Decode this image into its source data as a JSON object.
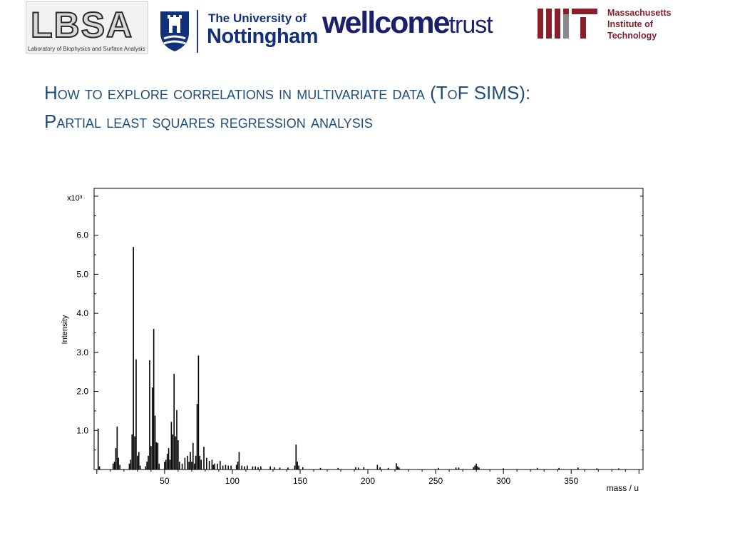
{
  "logos": {
    "lbsa": {
      "mark": "LBSA",
      "subtitle": "Laboratory of Biophysics and Surface Analysis"
    },
    "nottingham": {
      "line1": "The University of",
      "line2": "Nottingham"
    },
    "wellcome": {
      "part1": "wellcome",
      "part2": "trust"
    },
    "mit": {
      "line1": "Massachusetts",
      "line2": "Institute of",
      "line3": "Technology"
    }
  },
  "slide": {
    "title": "How to explore correlations in multivariate data (ToF SIMS): Partial least squares regression analysis"
  },
  "colors": {
    "title": "#1f4e79",
    "nottingham_blue": "#13307a",
    "wellcome_navy": "#1a1f6e",
    "mit_red": "#8a1f2b",
    "spectrum": "#000000"
  },
  "chart_data": {
    "type": "bar",
    "title": "",
    "xlabel": "mass / u",
    "ylabel": "Intensity",
    "y_multiplier_label": "x10³",
    "xlim": [
      -2,
      403
    ],
    "ylim": [
      0,
      7.2
    ],
    "x_ticks": [
      50,
      100,
      150,
      200,
      250,
      300,
      350
    ],
    "x_tick_labels": [
      "50",
      "100",
      "150",
      "200",
      "250",
      "300",
      "350"
    ],
    "y_ticks": [
      1,
      2,
      3,
      4,
      5,
      6
    ],
    "y_tick_labels": [
      "1.0",
      "2.0",
      "3.0",
      "4.0",
      "5.0",
      "6.0"
    ],
    "grid": false,
    "legend": "none",
    "peaks": [
      {
        "x": 1,
        "y": 1.05
      },
      {
        "x": 2,
        "y": 0.08
      },
      {
        "x": 12,
        "y": 0.15
      },
      {
        "x": 13,
        "y": 0.2
      },
      {
        "x": 14,
        "y": 0.55
      },
      {
        "x": 15,
        "y": 1.1
      },
      {
        "x": 16,
        "y": 0.3
      },
      {
        "x": 17,
        "y": 0.12
      },
      {
        "x": 24,
        "y": 0.15
      },
      {
        "x": 25,
        "y": 0.25
      },
      {
        "x": 26,
        "y": 0.9
      },
      {
        "x": 27,
        "y": 5.7
      },
      {
        "x": 28,
        "y": 0.85
      },
      {
        "x": 29,
        "y": 2.82
      },
      {
        "x": 30,
        "y": 0.35
      },
      {
        "x": 31,
        "y": 0.45
      },
      {
        "x": 32,
        "y": 0.1
      },
      {
        "x": 36,
        "y": 0.08
      },
      {
        "x": 37,
        "y": 0.2
      },
      {
        "x": 38,
        "y": 0.35
      },
      {
        "x": 39,
        "y": 2.8
      },
      {
        "x": 40,
        "y": 0.6
      },
      {
        "x": 41,
        "y": 2.1
      },
      {
        "x": 42,
        "y": 3.6
      },
      {
        "x": 43,
        "y": 1.38
      },
      {
        "x": 44,
        "y": 0.7
      },
      {
        "x": 45,
        "y": 0.68
      },
      {
        "x": 46,
        "y": 0.15
      },
      {
        "x": 50,
        "y": 0.2
      },
      {
        "x": 51,
        "y": 0.25
      },
      {
        "x": 52,
        "y": 0.4
      },
      {
        "x": 53,
        "y": 0.55
      },
      {
        "x": 54,
        "y": 0.25
      },
      {
        "x": 55,
        "y": 1.22
      },
      {
        "x": 56,
        "y": 0.9
      },
      {
        "x": 57,
        "y": 2.45
      },
      {
        "x": 58,
        "y": 0.85
      },
      {
        "x": 59,
        "y": 1.52
      },
      {
        "x": 60,
        "y": 0.75
      },
      {
        "x": 61,
        "y": 0.2
      },
      {
        "x": 63,
        "y": 0.15
      },
      {
        "x": 65,
        "y": 0.3
      },
      {
        "x": 67,
        "y": 0.35
      },
      {
        "x": 68,
        "y": 0.2
      },
      {
        "x": 69,
        "y": 0.45
      },
      {
        "x": 70,
        "y": 0.2
      },
      {
        "x": 71,
        "y": 0.68
      },
      {
        "x": 72,
        "y": 0.15
      },
      {
        "x": 73,
        "y": 0.35
      },
      {
        "x": 74,
        "y": 1.68
      },
      {
        "x": 75,
        "y": 2.92
      },
      {
        "x": 76,
        "y": 0.35
      },
      {
        "x": 77,
        "y": 0.25
      },
      {
        "x": 79,
        "y": 0.58
      },
      {
        "x": 81,
        "y": 0.3
      },
      {
        "x": 83,
        "y": 0.22
      },
      {
        "x": 85,
        "y": 0.25
      },
      {
        "x": 86,
        "y": 0.12
      },
      {
        "x": 87,
        "y": 0.15
      },
      {
        "x": 89,
        "y": 0.15
      },
      {
        "x": 91,
        "y": 0.22
      },
      {
        "x": 93,
        "y": 0.1
      },
      {
        "x": 95,
        "y": 0.12
      },
      {
        "x": 97,
        "y": 0.1
      },
      {
        "x": 99,
        "y": 0.1
      },
      {
        "x": 103,
        "y": 0.12
      },
      {
        "x": 104,
        "y": 0.2
      },
      {
        "x": 105,
        "y": 0.45
      },
      {
        "x": 107,
        "y": 0.1
      },
      {
        "x": 109,
        "y": 0.08
      },
      {
        "x": 111,
        "y": 0.1
      },
      {
        "x": 115,
        "y": 0.08
      },
      {
        "x": 117,
        "y": 0.08
      },
      {
        "x": 119,
        "y": 0.06
      },
      {
        "x": 121,
        "y": 0.08
      },
      {
        "x": 128,
        "y": 0.08
      },
      {
        "x": 131,
        "y": 0.06
      },
      {
        "x": 135,
        "y": 0.05
      },
      {
        "x": 141,
        "y": 0.05
      },
      {
        "x": 146,
        "y": 0.1
      },
      {
        "x": 147,
        "y": 0.64
      },
      {
        "x": 148,
        "y": 0.2
      },
      {
        "x": 149,
        "y": 0.1
      },
      {
        "x": 152,
        "y": 0.06
      },
      {
        "x": 165,
        "y": 0.04
      },
      {
        "x": 178,
        "y": 0.04
      },
      {
        "x": 191,
        "y": 0.06
      },
      {
        "x": 193,
        "y": 0.05
      },
      {
        "x": 197,
        "y": 0.06
      },
      {
        "x": 207,
        "y": 0.12
      },
      {
        "x": 209,
        "y": 0.06
      },
      {
        "x": 215,
        "y": 0.04
      },
      {
        "x": 221,
        "y": 0.16
      },
      {
        "x": 222,
        "y": 0.08
      },
      {
        "x": 223,
        "y": 0.05
      },
      {
        "x": 252,
        "y": 0.04
      },
      {
        "x": 265,
        "y": 0.05
      },
      {
        "x": 267,
        "y": 0.05
      },
      {
        "x": 278,
        "y": 0.06
      },
      {
        "x": 279,
        "y": 0.1
      },
      {
        "x": 280,
        "y": 0.15
      },
      {
        "x": 281,
        "y": 0.08
      },
      {
        "x": 282,
        "y": 0.05
      },
      {
        "x": 300,
        "y": 0.03
      },
      {
        "x": 325,
        "y": 0.04
      },
      {
        "x": 341,
        "y": 0.04
      },
      {
        "x": 355,
        "y": 0.05
      },
      {
        "x": 369,
        "y": 0.03
      },
      {
        "x": 385,
        "y": 0.03
      }
    ]
  }
}
